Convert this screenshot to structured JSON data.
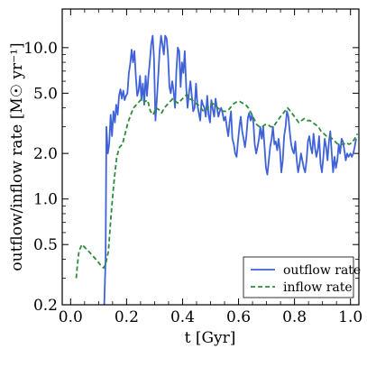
{
  "chart_data": {
    "type": "line",
    "xlabel": "t [Gyr]",
    "ylabel": "outflow/inflow rate [M☉ yr⁻¹]",
    "xlim": [
      -0.03,
      1.03
    ],
    "ylim": [
      0.2,
      18
    ],
    "yscale": "log",
    "grid": false,
    "legend_position": "lower-right",
    "x_ticks": [
      0.0,
      0.2,
      0.4,
      0.6,
      0.8,
      1.0
    ],
    "x_tick_labels": [
      "0.0",
      "0.2",
      "0.4",
      "0.6",
      "0.8",
      "1.0"
    ],
    "y_ticks": [
      0.2,
      0.5,
      1.0,
      2.0,
      5.0,
      10.0
    ],
    "y_tick_labels": [
      "0.2",
      "0.5",
      "1.0",
      "2.0",
      "5.0",
      "10.0"
    ],
    "series": [
      {
        "name": "outflow rate",
        "color": "#3f62d8",
        "dash": "solid",
        "points": [
          [
            0.12,
            0.2
          ],
          [
            0.125,
            0.4
          ],
          [
            0.128,
            3.0
          ],
          [
            0.133,
            2.0
          ],
          [
            0.138,
            2.3
          ],
          [
            0.143,
            3.6
          ],
          [
            0.148,
            2.6
          ],
          [
            0.153,
            3.8
          ],
          [
            0.158,
            3.2
          ],
          [
            0.163,
            4.2
          ],
          [
            0.168,
            3.6
          ],
          [
            0.173,
            4.8
          ],
          [
            0.178,
            5.3
          ],
          [
            0.183,
            4.6
          ],
          [
            0.188,
            5.2
          ],
          [
            0.193,
            4.5
          ],
          [
            0.198,
            4.8
          ],
          [
            0.203,
            5.0
          ],
          [
            0.208,
            6.8
          ],
          [
            0.213,
            7.8
          ],
          [
            0.218,
            9.7
          ],
          [
            0.223,
            8.0
          ],
          [
            0.228,
            9.5
          ],
          [
            0.233,
            6.5
          ],
          [
            0.238,
            4.8
          ],
          [
            0.243,
            5.2
          ],
          [
            0.248,
            6.5
          ],
          [
            0.253,
            4.5
          ],
          [
            0.258,
            5.8
          ],
          [
            0.263,
            4.2
          ],
          [
            0.268,
            6.5
          ],
          [
            0.273,
            4.8
          ],
          [
            0.278,
            6.5
          ],
          [
            0.283,
            8.0
          ],
          [
            0.288,
            10.5
          ],
          [
            0.293,
            12.0
          ],
          [
            0.298,
            8.5
          ],
          [
            0.303,
            3.3
          ],
          [
            0.308,
            4.5
          ],
          [
            0.313,
            6.5
          ],
          [
            0.318,
            9.5
          ],
          [
            0.323,
            12.0
          ],
          [
            0.328,
            10.5
          ],
          [
            0.333,
            9.0
          ],
          [
            0.338,
            12.0
          ],
          [
            0.343,
            11.5
          ],
          [
            0.348,
            9.0
          ],
          [
            0.353,
            5.5
          ],
          [
            0.358,
            5.0
          ],
          [
            0.363,
            6.0
          ],
          [
            0.368,
            5.2
          ],
          [
            0.373,
            4.0
          ],
          [
            0.378,
            7.0
          ],
          [
            0.383,
            10.0
          ],
          [
            0.388,
            9.5
          ],
          [
            0.393,
            5.5
          ],
          [
            0.398,
            8.0
          ],
          [
            0.403,
            6.8
          ],
          [
            0.408,
            9.5
          ],
          [
            0.413,
            5.5
          ],
          [
            0.418,
            4.0
          ],
          [
            0.423,
            5.0
          ],
          [
            0.428,
            6.0
          ],
          [
            0.433,
            4.8
          ],
          [
            0.438,
            3.8
          ],
          [
            0.443,
            4.0
          ],
          [
            0.448,
            5.8
          ],
          [
            0.453,
            4.2
          ],
          [
            0.458,
            3.7
          ],
          [
            0.463,
            3.3
          ],
          [
            0.468,
            4.5
          ],
          [
            0.473,
            4.2
          ],
          [
            0.478,
            4.0
          ],
          [
            0.483,
            3.5
          ],
          [
            0.488,
            4.8
          ],
          [
            0.493,
            3.6
          ],
          [
            0.498,
            3.2
          ],
          [
            0.503,
            4.5
          ],
          [
            0.508,
            3.9
          ],
          [
            0.513,
            3.5
          ],
          [
            0.518,
            4.6
          ],
          [
            0.523,
            4.0
          ],
          [
            0.528,
            3.5
          ],
          [
            0.533,
            3.8
          ],
          [
            0.538,
            4.0
          ],
          [
            0.543,
            3.7
          ],
          [
            0.548,
            3.3
          ],
          [
            0.553,
            3.5
          ],
          [
            0.558,
            3.0
          ],
          [
            0.563,
            2.6
          ],
          [
            0.568,
            3.2
          ],
          [
            0.573,
            3.8
          ],
          [
            0.578,
            2.5
          ],
          [
            0.583,
            2.3
          ],
          [
            0.588,
            2.0
          ],
          [
            0.593,
            1.9
          ],
          [
            0.598,
            2.4
          ],
          [
            0.603,
            3.0
          ],
          [
            0.608,
            3.5
          ],
          [
            0.613,
            2.8
          ],
          [
            0.618,
            2.5
          ],
          [
            0.623,
            2.2
          ],
          [
            0.628,
            2.6
          ],
          [
            0.633,
            3.4
          ],
          [
            0.638,
            3.7
          ],
          [
            0.643,
            3.3
          ],
          [
            0.648,
            3.6
          ],
          [
            0.653,
            3.2
          ],
          [
            0.658,
            2.3
          ],
          [
            0.663,
            2.0
          ],
          [
            0.668,
            2.2
          ],
          [
            0.673,
            2.5
          ],
          [
            0.678,
            3.0
          ],
          [
            0.683,
            2.5
          ],
          [
            0.688,
            3.0
          ],
          [
            0.693,
            2.2
          ],
          [
            0.698,
            1.6
          ],
          [
            0.703,
            1.45
          ],
          [
            0.708,
            1.8
          ],
          [
            0.713,
            2.2
          ],
          [
            0.718,
            2.5
          ],
          [
            0.723,
            3.0
          ],
          [
            0.728,
            2.3
          ],
          [
            0.733,
            2.4
          ],
          [
            0.738,
            2.1
          ],
          [
            0.743,
            2.5
          ],
          [
            0.748,
            2.1
          ],
          [
            0.753,
            1.5
          ],
          [
            0.758,
            1.8
          ],
          [
            0.763,
            2.6
          ],
          [
            0.768,
            3.0
          ],
          [
            0.773,
            3.8
          ],
          [
            0.778,
            3.5
          ],
          [
            0.783,
            2.8
          ],
          [
            0.788,
            2.3
          ],
          [
            0.793,
            2.1
          ],
          [
            0.798,
            2.0
          ],
          [
            0.803,
            2.4
          ],
          [
            0.808,
            1.8
          ],
          [
            0.813,
            1.5
          ],
          [
            0.818,
            1.7
          ],
          [
            0.823,
            2.0
          ],
          [
            0.828,
            1.8
          ],
          [
            0.833,
            1.6
          ],
          [
            0.838,
            1.5
          ],
          [
            0.843,
            1.8
          ],
          [
            0.848,
            2.4
          ],
          [
            0.853,
            2.6
          ],
          [
            0.858,
            2.2
          ],
          [
            0.863,
            2.0
          ],
          [
            0.868,
            2.7
          ],
          [
            0.873,
            2.2
          ],
          [
            0.878,
            1.9
          ],
          [
            0.883,
            2.1
          ],
          [
            0.888,
            2.6
          ],
          [
            0.893,
            1.7
          ],
          [
            0.898,
            1.5
          ],
          [
            0.903,
            1.9
          ],
          [
            0.908,
            2.5
          ],
          [
            0.913,
            2.2
          ],
          [
            0.918,
            1.8
          ],
          [
            0.923,
            2.4
          ],
          [
            0.928,
            2.8
          ],
          [
            0.933,
            2.0
          ],
          [
            0.938,
            1.5
          ],
          [
            0.943,
            1.9
          ],
          [
            0.948,
            1.6
          ],
          [
            0.953,
            1.8
          ],
          [
            0.958,
            2.3
          ],
          [
            0.963,
            2.0
          ],
          [
            0.968,
            2.5
          ],
          [
            0.973,
            2.4
          ],
          [
            0.978,
            2.1
          ],
          [
            0.983,
            1.8
          ],
          [
            0.988,
            2.0
          ],
          [
            0.993,
            1.9
          ],
          [
            1.0,
            2.0
          ],
          [
            1.005,
            1.9
          ],
          [
            1.01,
            2.0
          ],
          [
            1.015,
            2.2
          ],
          [
            1.02,
            2.5
          ]
        ]
      },
      {
        "name": "inflow rate",
        "color": "#2e8b3e",
        "dash": "dashed",
        "points": [
          [
            0.02,
            0.3
          ],
          [
            0.025,
            0.38
          ],
          [
            0.03,
            0.45
          ],
          [
            0.04,
            0.5
          ],
          [
            0.05,
            0.48
          ],
          [
            0.06,
            0.46
          ],
          [
            0.07,
            0.44
          ],
          [
            0.08,
            0.42
          ],
          [
            0.09,
            0.4
          ],
          [
            0.1,
            0.38
          ],
          [
            0.11,
            0.36
          ],
          [
            0.118,
            0.35
          ],
          [
            0.125,
            0.37
          ],
          [
            0.135,
            0.45
          ],
          [
            0.145,
            0.8
          ],
          [
            0.155,
            1.3
          ],
          [
            0.165,
            1.9
          ],
          [
            0.175,
            2.2
          ],
          [
            0.185,
            2.3
          ],
          [
            0.195,
            2.7
          ],
          [
            0.205,
            3.2
          ],
          [
            0.215,
            3.6
          ],
          [
            0.225,
            4.0
          ],
          [
            0.235,
            4.2
          ],
          [
            0.245,
            4.4
          ],
          [
            0.255,
            4.6
          ],
          [
            0.265,
            4.4
          ],
          [
            0.275,
            4.5
          ],
          [
            0.285,
            3.8
          ],
          [
            0.295,
            3.6
          ],
          [
            0.305,
            4.0
          ],
          [
            0.315,
            3.9
          ],
          [
            0.325,
            3.7
          ],
          [
            0.335,
            4.0
          ],
          [
            0.345,
            4.2
          ],
          [
            0.355,
            4.4
          ],
          [
            0.365,
            4.6
          ],
          [
            0.375,
            4.4
          ],
          [
            0.385,
            4.3
          ],
          [
            0.395,
            4.5
          ],
          [
            0.405,
            4.7
          ],
          [
            0.415,
            4.9
          ],
          [
            0.425,
            4.6
          ],
          [
            0.435,
            4.5
          ],
          [
            0.445,
            4.3
          ],
          [
            0.455,
            4.2
          ],
          [
            0.465,
            4.0
          ],
          [
            0.475,
            3.8
          ],
          [
            0.485,
            3.9
          ],
          [
            0.495,
            4.1
          ],
          [
            0.505,
            4.3
          ],
          [
            0.515,
            4.2
          ],
          [
            0.525,
            4.0
          ],
          [
            0.535,
            3.9
          ],
          [
            0.545,
            3.8
          ],
          [
            0.555,
            3.8
          ],
          [
            0.565,
            3.9
          ],
          [
            0.575,
            4.1
          ],
          [
            0.585,
            4.3
          ],
          [
            0.595,
            4.4
          ],
          [
            0.605,
            4.4
          ],
          [
            0.615,
            4.3
          ],
          [
            0.625,
            4.2
          ],
          [
            0.635,
            4.0
          ],
          [
            0.645,
            3.7
          ],
          [
            0.655,
            3.4
          ],
          [
            0.665,
            3.1
          ],
          [
            0.675,
            3.0
          ],
          [
            0.685,
            3.0
          ],
          [
            0.695,
            3.1
          ],
          [
            0.705,
            3.1
          ],
          [
            0.715,
            3.0
          ],
          [
            0.725,
            3.0
          ],
          [
            0.735,
            3.2
          ],
          [
            0.745,
            3.4
          ],
          [
            0.755,
            3.6
          ],
          [
            0.765,
            3.8
          ],
          [
            0.775,
            4.0
          ],
          [
            0.785,
            3.8
          ],
          [
            0.795,
            3.6
          ],
          [
            0.805,
            3.4
          ],
          [
            0.815,
            3.2
          ],
          [
            0.825,
            3.3
          ],
          [
            0.835,
            3.4
          ],
          [
            0.845,
            3.3
          ],
          [
            0.855,
            3.3
          ],
          [
            0.865,
            3.2
          ],
          [
            0.875,
            3.1
          ],
          [
            0.885,
            3.0
          ],
          [
            0.895,
            2.8
          ],
          [
            0.905,
            2.7
          ],
          [
            0.915,
            2.6
          ],
          [
            0.925,
            2.6
          ],
          [
            0.935,
            2.5
          ],
          [
            0.945,
            2.4
          ],
          [
            0.955,
            2.3
          ],
          [
            0.965,
            2.3
          ],
          [
            0.975,
            2.3
          ],
          [
            0.985,
            2.35
          ],
          [
            0.995,
            2.3
          ],
          [
            1.005,
            2.35
          ],
          [
            1.015,
            2.5
          ],
          [
            1.025,
            2.7
          ]
        ]
      }
    ]
  }
}
